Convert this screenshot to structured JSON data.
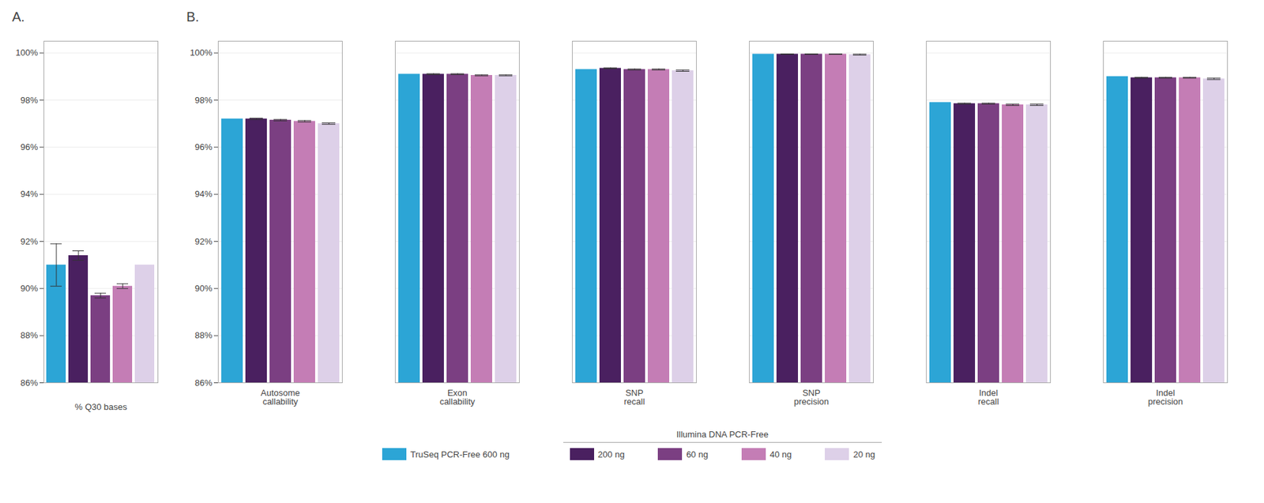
{
  "chart_data": [
    {
      "type": "bar",
      "title": "A.",
      "xlabel": "% Q30 bases",
      "categories": [
        null
      ],
      "series": [
        {
          "name": "TruSeq PCR-Free 600 ng",
          "color": "#2CA5D6",
          "values": [
            91.0
          ],
          "errors": [
            0.9
          ]
        },
        {
          "name": "200 ng",
          "color": "#4A2060",
          "values": [
            91.4
          ],
          "errors": [
            0.2
          ]
        },
        {
          "name": "60 ng",
          "color": "#7B3F82",
          "values": [
            89.7
          ],
          "errors": [
            0.1
          ]
        },
        {
          "name": "40 ng",
          "color": "#C47DB5",
          "values": [
            90.1
          ],
          "errors": [
            0.1
          ]
        },
        {
          "name": "20 ng",
          "color": "#DDD0E8",
          "values": [
            91.0
          ],
          "errors": [
            0.0
          ]
        }
      ],
      "ylim": [
        86,
        100.5
      ],
      "yticks": [
        {
          "value": 86,
          "label": "86%"
        },
        {
          "value": 88,
          "label": "88%"
        },
        {
          "value": 90,
          "label": "90%"
        },
        {
          "value": 92,
          "label": "92%"
        },
        {
          "value": 94,
          "label": "94%"
        },
        {
          "value": 96,
          "label": "96%"
        },
        {
          "value": 98,
          "label": "98%"
        },
        {
          "value": 100,
          "label": "100%"
        }
      ],
      "grid": true,
      "tick_labels": "y"
    },
    {
      "type": "bar",
      "title": "B.",
      "categories": [
        "Autosome\ncallability",
        "Exon\ncallability",
        "SNP\nrecall",
        "SNP\nprecision",
        "Indel\nrecall",
        "Indel\nprecision"
      ],
      "series": [
        {
          "name": "TruSeq PCR-Free 600 ng",
          "color": "#2CA5D6",
          "values": [
            97.2,
            99.1,
            99.3,
            99.95,
            97.9,
            99.0
          ],
          "errors": [
            0.0,
            0.0,
            0.0,
            0.0,
            0.0,
            0.0
          ]
        },
        {
          "name": "200 ng",
          "color": "#4A2060",
          "values": [
            97.2,
            99.1,
            99.35,
            99.95,
            97.85,
            98.95
          ],
          "errors": [
            0.03,
            0.02,
            0.02,
            0.01,
            0.02,
            0.02
          ]
        },
        {
          "name": "60 ng",
          "color": "#7B3F82",
          "values": [
            97.15,
            99.1,
            99.3,
            99.95,
            97.85,
            98.95
          ],
          "errors": [
            0.03,
            0.02,
            0.02,
            0.01,
            0.02,
            0.02
          ]
        },
        {
          "name": "40 ng",
          "color": "#C47DB5",
          "values": [
            97.1,
            99.05,
            99.3,
            99.95,
            97.8,
            98.95
          ],
          "errors": [
            0.03,
            0.02,
            0.02,
            0.01,
            0.03,
            0.02
          ]
        },
        {
          "name": "20 ng",
          "color": "#DDD0E8",
          "values": [
            97.0,
            99.05,
            99.25,
            99.93,
            97.8,
            98.9
          ],
          "errors": [
            0.03,
            0.02,
            0.03,
            0.02,
            0.03,
            0.03
          ]
        }
      ],
      "ylim": [
        86,
        100.5
      ],
      "yticks": [
        {
          "value": 86,
          "label": "86%"
        },
        {
          "value": 88,
          "label": "88%"
        },
        {
          "value": 90,
          "label": "90%"
        },
        {
          "value": 92,
          "label": "92%"
        },
        {
          "value": 94,
          "label": "94%"
        },
        {
          "value": 96,
          "label": "96%"
        },
        {
          "value": 98,
          "label": "98%"
        },
        {
          "value": 100,
          "label": "100%"
        }
      ],
      "grid": true,
      "legend": "bottom",
      "legend_groups": [
        {
          "label": "Illumina DNA PCR-Free",
          "series": [
            "200 ng",
            "60 ng",
            "40 ng",
            "20 ng"
          ]
        }
      ]
    }
  ]
}
